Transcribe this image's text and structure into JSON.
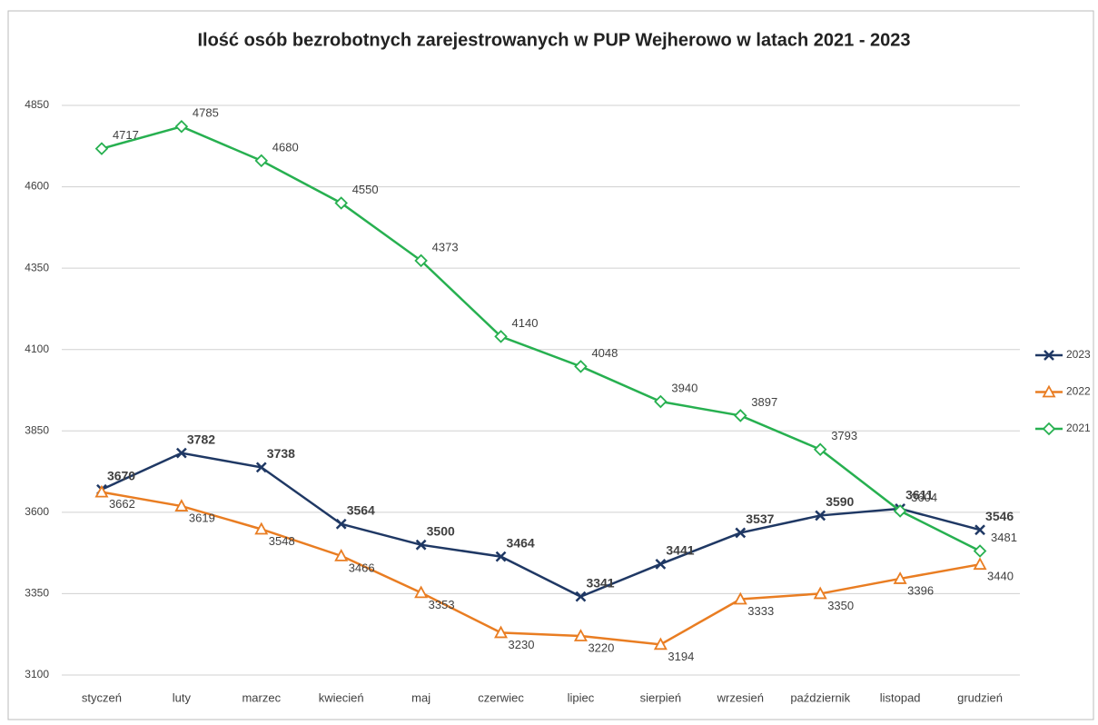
{
  "chart_data": {
    "type": "line",
    "title": "Ilość osób bezrobotnych zarejestrowanych w PUP Wejherowo w latach 2021 - 2023",
    "categories": [
      "styczeń",
      "luty",
      "marzec",
      "kwiecień",
      "maj",
      "czerwiec",
      "lipiec",
      "sierpień",
      "wrzesień",
      "październik",
      "listopad",
      "grudzień"
    ],
    "series": [
      {
        "name": "2023",
        "color": "#1f3864",
        "label_color": "#1f3864",
        "marker": "x",
        "values": [
          3670,
          3782,
          3738,
          3564,
          3500,
          3464,
          3341,
          3441,
          3537,
          3590,
          3611,
          3546
        ]
      },
      {
        "name": "2022",
        "color": "#e97d22",
        "label_color": "#b8641a",
        "marker": "triangle",
        "values": [
          3662,
          3619,
          3548,
          3466,
          3353,
          3230,
          3220,
          3194,
          3333,
          3350,
          3396,
          3440
        ]
      },
      {
        "name": "2021",
        "color": "#27b050",
        "label_color": "#5c5c14",
        "marker": "diamond",
        "values": [
          4717,
          4785,
          4680,
          4550,
          4373,
          4140,
          4048,
          3940,
          3897,
          3793,
          3604,
          3481
        ]
      }
    ],
    "ylim": [
      3100,
      4850
    ],
    "yticks": [
      3100,
      3350,
      3600,
      3850,
      4100,
      4350,
      4600,
      4850
    ],
    "grid": true,
    "legend": "right"
  }
}
